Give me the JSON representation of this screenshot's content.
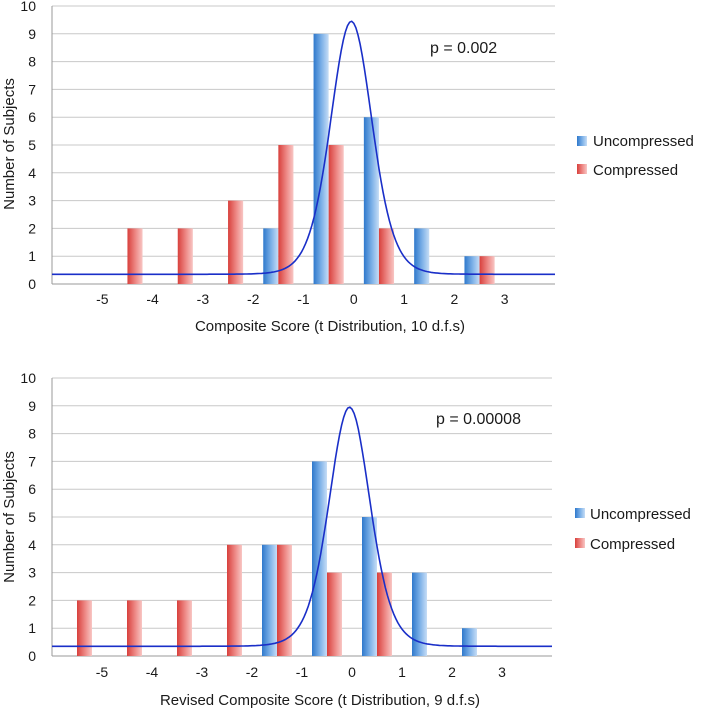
{
  "colors": {
    "uncompressed": "#4f8fd6",
    "compressed": "#e0514f",
    "curve": "#1a2fc8",
    "grid": "#c8c8c8"
  },
  "chart_data": [
    {
      "type": "bar",
      "title": "",
      "annotation": "p = 0.002",
      "xlabel": "Composite Score (t Distribution, 10 d.f.s)",
      "ylabel": "Number of Subjects",
      "ylim": [
        0,
        10
      ],
      "yticks": [
        "0",
        "1",
        "2",
        "3",
        "4",
        "5",
        "6",
        "7",
        "8",
        "9",
        "10"
      ],
      "xlim": [
        -6,
        4
      ],
      "xticks": [
        {
          "value": -5,
          "label": "-5"
        },
        {
          "value": -4,
          "label": "-4"
        },
        {
          "value": -3,
          "label": "-3"
        },
        {
          "value": -2,
          "label": "-2"
        },
        {
          "value": -1,
          "label": "-1"
        },
        {
          "value": 0,
          "label": "0"
        },
        {
          "value": 1,
          "label": "1"
        },
        {
          "value": 2,
          "label": "2"
        },
        {
          "value": 3,
          "label": "3"
        }
      ],
      "bin_width": 1,
      "series": [
        {
          "name": "Uncompressed",
          "bins": [
            -5.5,
            -4.5,
            -3.5,
            -2.5,
            -1.5,
            -0.5,
            0.5,
            1.5,
            2.5
          ],
          "values": [
            0,
            0,
            0,
            0,
            2,
            9,
            6,
            2,
            1
          ]
        },
        {
          "name": "Compressed",
          "bins": [
            -5.5,
            -4.5,
            -3.5,
            -2.5,
            -1.5,
            -0.5,
            0.5,
            1.5,
            2.5
          ],
          "values": [
            0,
            2,
            2,
            3,
            5,
            5,
            2,
            0,
            1
          ]
        }
      ],
      "curve": {
        "name": "t distribution fit",
        "center": -0.05,
        "peak": 9.45,
        "baseline": 0.35,
        "df": 10,
        "scale": 0.42
      },
      "legend": [
        "Uncompressed",
        "Compressed"
      ]
    },
    {
      "type": "bar",
      "title": "",
      "annotation": "p = 0.00008",
      "xlabel": "Revised Composite Score (t Distribution, 9 d.f.s)",
      "ylabel": "Number of Subjects",
      "ylim": [
        0,
        10
      ],
      "yticks": [
        "0",
        "1",
        "2",
        "3",
        "4",
        "5",
        "6",
        "7",
        "8",
        "9",
        "10"
      ],
      "xlim": [
        -6,
        4
      ],
      "xticks": [
        {
          "value": -5,
          "label": "-5"
        },
        {
          "value": -4,
          "label": "-4"
        },
        {
          "value": -3,
          "label": "-3"
        },
        {
          "value": -2,
          "label": "-2"
        },
        {
          "value": -1,
          "label": "-1"
        },
        {
          "value": 0,
          "label": "0"
        },
        {
          "value": 1,
          "label": "1"
        },
        {
          "value": 2,
          "label": "2"
        },
        {
          "value": 3,
          "label": "3"
        }
      ],
      "bin_width": 1,
      "series": [
        {
          "name": "Uncompressed",
          "bins": [
            -5.5,
            -4.5,
            -3.5,
            -2.5,
            -1.5,
            -0.5,
            0.5,
            1.5,
            2.5
          ],
          "values": [
            0,
            0,
            0,
            0,
            4,
            7,
            5,
            3,
            1
          ]
        },
        {
          "name": "Compressed",
          "bins": [
            -5.5,
            -4.5,
            -3.5,
            -2.5,
            -1.5,
            -0.5,
            0.5,
            1.5,
            2.5
          ],
          "values": [
            2,
            2,
            2,
            4,
            4,
            3,
            3,
            0,
            0
          ]
        }
      ],
      "curve": {
        "name": "t distribution fit",
        "center": -0.05,
        "peak": 8.95,
        "baseline": 0.35,
        "df": 9,
        "scale": 0.42
      },
      "legend": [
        "Uncompressed",
        "Compressed"
      ]
    }
  ]
}
